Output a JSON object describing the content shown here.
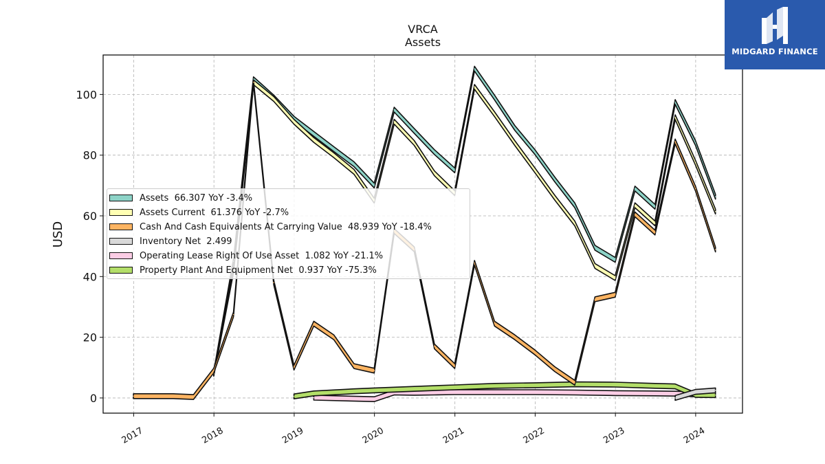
{
  "brand": {
    "name": "MIDGARD FINANCE",
    "bg_color": "#2a5aad",
    "icon": "mf-monogram-logo"
  },
  "chart_data": {
    "type": "area",
    "title": "VRCA",
    "subtitle": "Assets",
    "ylabel": "USD",
    "xlabel": "",
    "ylim": [
      -5,
      113
    ],
    "xlim": [
      "2016-08-15",
      "2024-08-01"
    ],
    "yticks": [
      0,
      20,
      40,
      60,
      80,
      100
    ],
    "xticks": [
      "2017",
      "2018",
      "2019",
      "2020",
      "2021",
      "2022",
      "2023",
      "2024"
    ],
    "grid": true,
    "legend_position": "center-left",
    "series": [
      {
        "name": "Assets",
        "legend": "Assets  66.307 YoY -3.4%",
        "color": "#8dd3c7",
        "points": [
          [
            "2017-12-31",
            8
          ],
          [
            "2018-03-31",
            45
          ],
          [
            "2018-06-30",
            105
          ],
          [
            "2018-09-30",
            99
          ],
          [
            "2018-12-31",
            92
          ],
          [
            "2019-03-31",
            87
          ],
          [
            "2019-06-30",
            82
          ],
          [
            "2019-09-30",
            77
          ],
          [
            "2019-12-31",
            70
          ],
          [
            "2020-03-31",
            95
          ],
          [
            "2020-06-30",
            88
          ],
          [
            "2020-09-30",
            81
          ],
          [
            "2020-12-31",
            75
          ],
          [
            "2021-03-31",
            108.5
          ],
          [
            "2021-06-30",
            99
          ],
          [
            "2021-09-30",
            89
          ],
          [
            "2021-12-31",
            81
          ],
          [
            "2022-03-31",
            72
          ],
          [
            "2022-06-30",
            63.5
          ],
          [
            "2022-09-30",
            49.5
          ],
          [
            "2022-12-31",
            45.5
          ],
          [
            "2023-03-31",
            69
          ],
          [
            "2023-06-30",
            63
          ],
          [
            "2023-09-30",
            97.5
          ],
          [
            "2023-12-31",
            84
          ],
          [
            "2024-03-31",
            66.3
          ]
        ]
      },
      {
        "name": "Assets Current",
        "legend": "Assets Current  61.376 YoY -2.7%",
        "color": "#ffffb3",
        "points": [
          [
            "2017-12-31",
            8
          ],
          [
            "2018-03-31",
            42
          ],
          [
            "2018-06-30",
            104
          ],
          [
            "2018-09-30",
            98.5
          ],
          [
            "2018-12-31",
            91
          ],
          [
            "2019-03-31",
            85
          ],
          [
            "2019-06-30",
            80
          ],
          [
            "2019-09-30",
            74.5
          ],
          [
            "2019-12-31",
            65
          ],
          [
            "2020-03-31",
            91
          ],
          [
            "2020-06-30",
            84
          ],
          [
            "2020-09-30",
            74
          ],
          [
            "2020-12-31",
            67.5
          ],
          [
            "2021-03-31",
            102.5
          ],
          [
            "2021-06-30",
            93.5
          ],
          [
            "2021-09-30",
            84
          ],
          [
            "2021-12-31",
            75
          ],
          [
            "2022-03-31",
            66
          ],
          [
            "2022-06-30",
            57.5
          ],
          [
            "2022-09-30",
            43.5
          ],
          [
            "2022-12-31",
            39.5
          ],
          [
            "2023-03-31",
            63.5
          ],
          [
            "2023-06-30",
            57.5
          ],
          [
            "2023-09-30",
            92.5
          ],
          [
            "2023-12-31",
            77.5
          ],
          [
            "2024-03-31",
            61.4
          ]
        ]
      },
      {
        "name": "Cash And Cash Equivalents At Carrying Value",
        "legend": "Cash And Cash Equivalents At Carrying Value  48.939 YoY -18.4%",
        "color": "#fdb462",
        "points": [
          [
            "2016-12-31",
            0.6
          ],
          [
            "2017-06-30",
            0.6
          ],
          [
            "2017-09-30",
            0.3
          ],
          [
            "2017-12-31",
            9
          ],
          [
            "2018-03-31",
            27.5
          ],
          [
            "2018-06-30",
            104
          ],
          [
            "2018-09-30",
            38
          ],
          [
            "2018-12-31",
            10
          ],
          [
            "2019-03-31",
            24.5
          ],
          [
            "2019-06-30",
            20
          ],
          [
            "2019-09-30",
            10.5
          ],
          [
            "2019-12-31",
            9
          ],
          [
            "2020-03-31",
            55
          ],
          [
            "2020-06-30",
            49
          ],
          [
            "2020-09-30",
            17
          ],
          [
            "2020-12-31",
            10.5
          ],
          [
            "2021-03-31",
            44.5
          ],
          [
            "2021-06-30",
            24.5
          ],
          [
            "2021-09-30",
            20
          ],
          [
            "2021-12-31",
            15
          ],
          [
            "2022-03-31",
            9.5
          ],
          [
            "2022-06-30",
            5
          ],
          [
            "2022-09-30",
            32.5
          ],
          [
            "2022-12-31",
            34
          ],
          [
            "2023-03-31",
            60.5
          ],
          [
            "2023-06-30",
            54.5
          ],
          [
            "2023-09-30",
            84.5
          ],
          [
            "2023-12-31",
            69
          ],
          [
            "2024-03-31",
            48.9
          ]
        ]
      },
      {
        "name": "Inventory Net",
        "legend": "Inventory Net  2.499",
        "color": "#d9d9d9",
        "points": [
          [
            "2023-09-30",
            0
          ],
          [
            "2023-12-31",
            2
          ],
          [
            "2024-03-31",
            2.5
          ]
        ]
      },
      {
        "name": "Operating Lease Right Of Use Asset",
        "legend": "Operating Lease Right Of Use Asset  1.082 YoY -21.1%",
        "color": "#fccde5",
        "points": [
          [
            "2019-03-31",
            0.1
          ],
          [
            "2019-12-31",
            -0.4
          ],
          [
            "2020-03-31",
            1.8
          ],
          [
            "2020-06-30",
            1.7
          ],
          [
            "2020-09-30",
            1.8
          ],
          [
            "2020-12-31",
            1.9
          ],
          [
            "2021-12-31",
            1.9
          ],
          [
            "2022-06-30",
            1.8
          ],
          [
            "2022-12-31",
            1.6
          ],
          [
            "2023-06-30",
            1.5
          ],
          [
            "2023-09-30",
            1.4
          ],
          [
            "2023-12-31",
            1.2
          ],
          [
            "2024-03-31",
            1.08
          ]
        ]
      },
      {
        "name": "Property Plant And Equipment Net",
        "legend": "Property Plant And Equipment Net  0.937 YoY -75.3%",
        "color": "#b3de69",
        "points": [
          [
            "2018-12-31",
            0.5
          ],
          [
            "2019-03-31",
            1.5
          ],
          [
            "2019-09-30",
            2.2
          ],
          [
            "2019-12-31",
            2.5
          ],
          [
            "2020-06-30",
            3
          ],
          [
            "2020-12-31",
            3.5
          ],
          [
            "2021-06-30",
            4
          ],
          [
            "2021-12-31",
            4.2
          ],
          [
            "2022-06-30",
            4.5
          ],
          [
            "2022-12-31",
            4.4
          ],
          [
            "2023-06-30",
            4
          ],
          [
            "2023-09-30",
            3.8
          ],
          [
            "2023-12-31",
            1
          ],
          [
            "2024-03-31",
            0.94
          ]
        ]
      }
    ]
  }
}
